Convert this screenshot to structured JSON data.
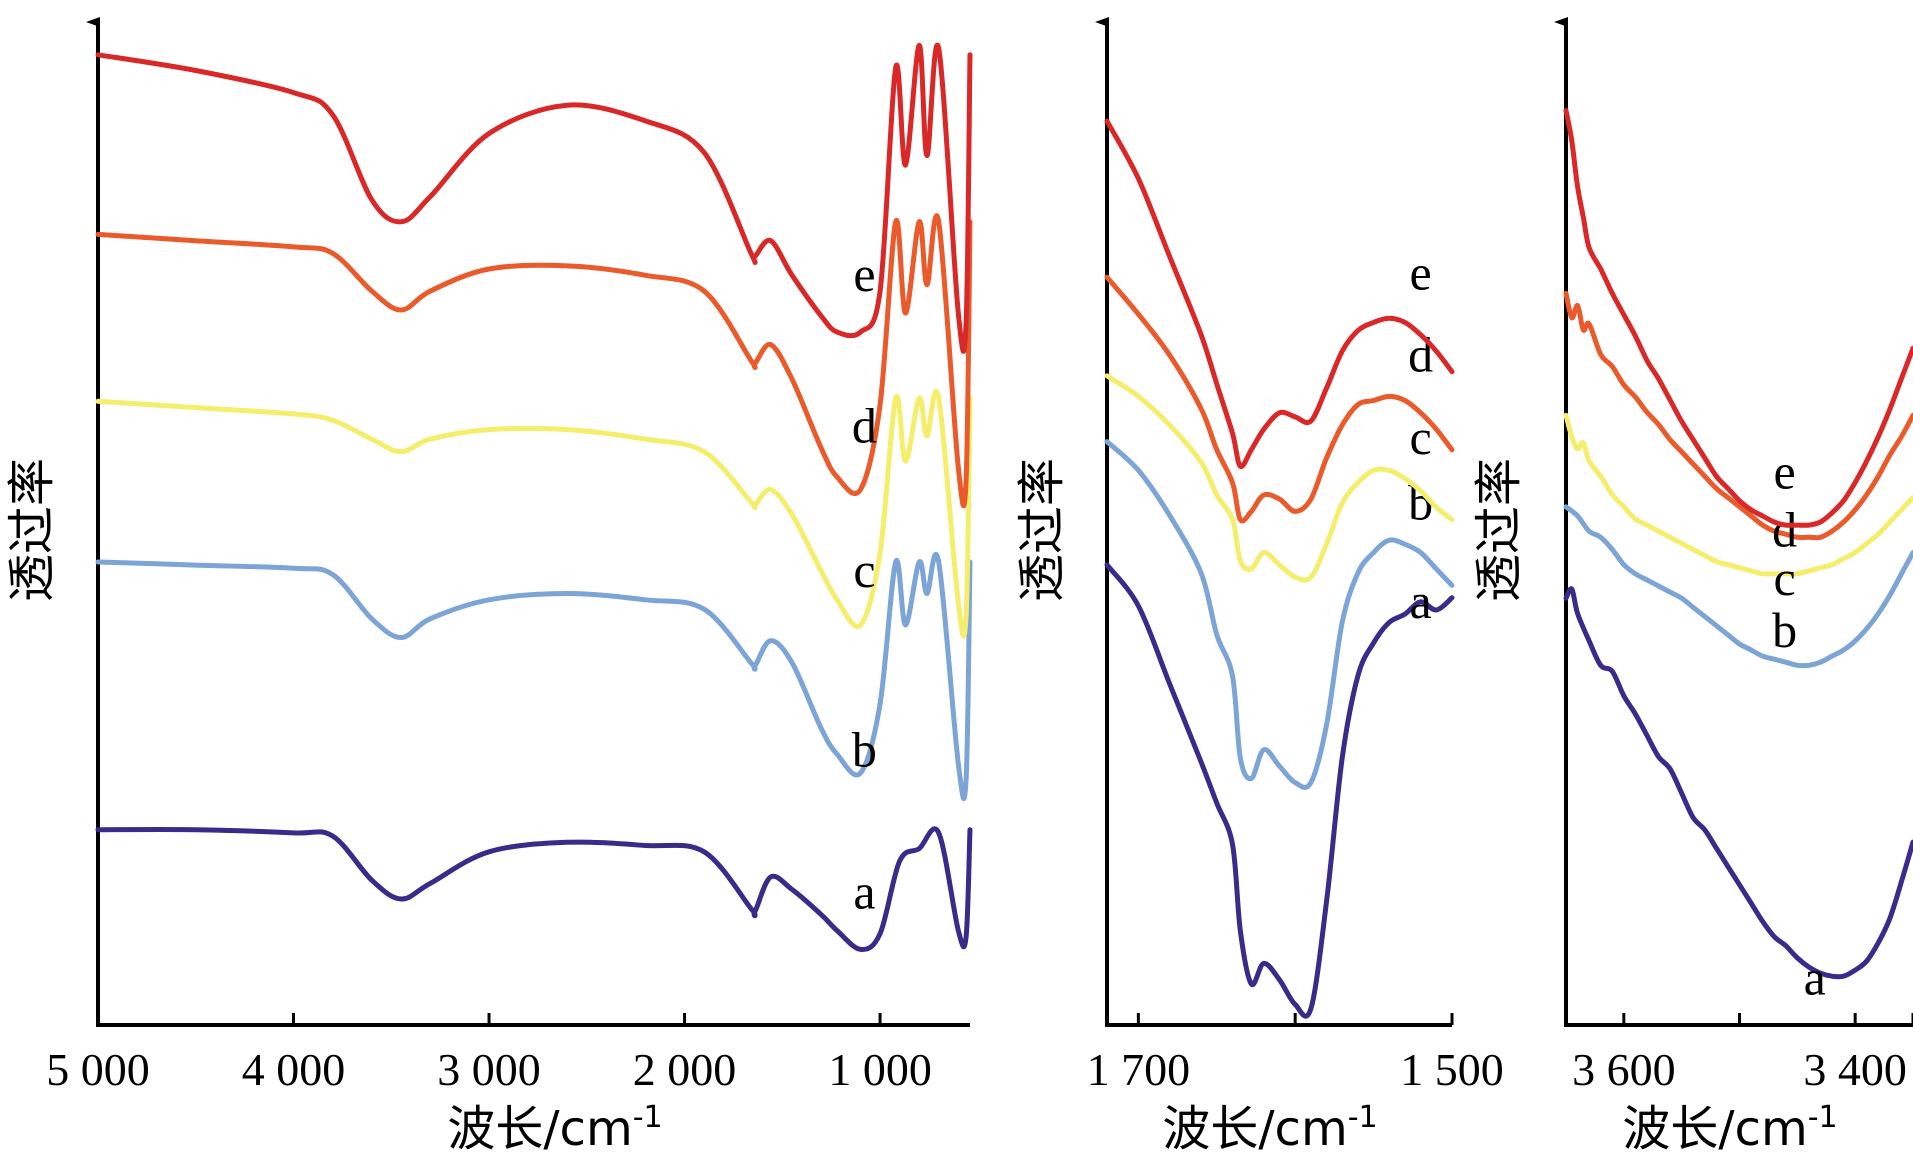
{
  "chart_data": [
    {
      "type": "line",
      "panel": "full",
      "xlabel": "波长/cm",
      "xlabel_sup": "-1",
      "ylabel": "透过率",
      "xlim": [
        5000,
        540
      ],
      "x_ticks": [
        5000,
        4000,
        3000,
        2000,
        1000
      ],
      "x_tick_labels": [
        "5 000",
        "4 000",
        "3 000",
        "2 000",
        "1 000"
      ],
      "series": [
        {
          "label": "a",
          "color": "#3b2a8a",
          "offset": 1.7,
          "label_x": 1080,
          "label_y": 2.0,
          "x": [
            5000,
            4500,
            4000,
            3800,
            3600,
            3450,
            3300,
            3000,
            2600,
            2200,
            1900,
            1660,
            1640,
            1560,
            1450,
            1300,
            1220,
            1100,
            1000,
            900,
            800,
            700,
            600,
            560,
            540
          ],
          "y": [
            4.5,
            4.5,
            4.4,
            4.3,
            2.9,
            2.3,
            2.8,
            3.8,
            4.1,
            4.0,
            3.8,
            2.0,
            1.9,
            3.0,
            2.6,
            1.8,
            1.3,
            0.7,
            1.2,
            3.5,
            3.9,
            4.4,
            1.3,
            1.1,
            4.5
          ]
        },
        {
          "label": "b",
          "color": "#7ca4d6",
          "offset": 6.7,
          "label_x": 1080,
          "label_y": 1.5,
          "x": [
            5000,
            4500,
            4000,
            3800,
            3600,
            3450,
            3300,
            3000,
            2600,
            2200,
            1900,
            1660,
            1640,
            1560,
            1450,
            1300,
            1220,
            1100,
            1000,
            920,
            870,
            800,
            760,
            700,
            600,
            560,
            540
          ],
          "y": [
            8.0,
            7.9,
            7.8,
            7.6,
            6.2,
            5.6,
            6.2,
            6.8,
            7.0,
            6.8,
            6.5,
            4.8,
            4.7,
            5.5,
            4.8,
            2.7,
            1.9,
            1.3,
            3.5,
            8.0,
            6.0,
            8.0,
            7.0,
            8.0,
            1.6,
            1.1,
            8.0
          ]
        },
        {
          "label": "c",
          "color": "#f4ee6c",
          "offset": 11.4,
          "label_x": 1080,
          "label_y": 2.5,
          "x": [
            5000,
            4500,
            4000,
            3800,
            3600,
            3450,
            3300,
            3000,
            2600,
            2200,
            1900,
            1660,
            1640,
            1560,
            1450,
            1300,
            1220,
            1100,
            1000,
            920,
            870,
            800,
            760,
            700,
            600,
            560,
            540
          ],
          "y": [
            8.4,
            8.2,
            8.0,
            7.8,
            7.2,
            6.8,
            7.2,
            7.5,
            7.5,
            7.2,
            6.8,
            5.2,
            5.1,
            5.6,
            4.8,
            3.0,
            2.1,
            1.3,
            3.6,
            8.5,
            6.5,
            8.5,
            7.3,
            8.5,
            2.0,
            1.6,
            8.5
          ]
        },
        {
          "label": "d",
          "color": "#ea5a2a",
          "offset": 16.5,
          "label_x": 1080,
          "label_y": 2.0,
          "x": [
            5000,
            4500,
            4000,
            3800,
            3600,
            3450,
            3300,
            3000,
            2600,
            2200,
            1900,
            1660,
            1640,
            1560,
            1450,
            1300,
            1220,
            1100,
            1000,
            920,
            870,
            800,
            760,
            700,
            600,
            560,
            540
          ],
          "y": [
            8.6,
            8.4,
            8.2,
            8.0,
            6.8,
            6.2,
            6.8,
            7.5,
            7.6,
            7.3,
            6.8,
            4.6,
            4.5,
            5.1,
            4.0,
            1.8,
            0.9,
            0.5,
            3.2,
            9.0,
            6.1,
            9.0,
            7.0,
            9.0,
            1.2,
            0.8,
            9.0
          ]
        },
        {
          "label": "e",
          "color": "#da2828",
          "offset": 21.8,
          "label_x": 1080,
          "label_y": 1.5,
          "x": [
            5000,
            4500,
            4000,
            3800,
            3600,
            3450,
            3300,
            3000,
            2600,
            2200,
            1900,
            1660,
            1640,
            1560,
            1450,
            1300,
            1220,
            1100,
            1000,
            920,
            870,
            800,
            760,
            700,
            600,
            560,
            540
          ],
          "y": [
            9.0,
            8.5,
            7.8,
            7.1,
            4.4,
            3.7,
            4.5,
            6.5,
            7.4,
            6.9,
            5.9,
            2.7,
            2.6,
            3.1,
            2.0,
            0.7,
            0.2,
            0.2,
            1.5,
            8.6,
            5.5,
            9.3,
            5.8,
            9.2,
            0.8,
            0.5,
            9.0
          ]
        }
      ]
    },
    {
      "type": "line",
      "panel": "1700-1500",
      "xlabel": "波长/cm",
      "xlabel_sup": "-1",
      "ylabel": "透过率",
      "xlim": [
        1720,
        1500
      ],
      "x_ticks": [
        1700,
        1500
      ],
      "x_tick_labels": [
        "1 700",
        "1 500"
      ],
      "minor_ticks": [
        1700,
        1600,
        1500
      ],
      "series": [
        {
          "label": "a",
          "color": "#3b2a8a",
          "offset": 0,
          "label_x": 1520,
          "label_y": 9.9,
          "x": [
            1720,
            1700,
            1680,
            1660,
            1650,
            1640,
            1635,
            1628,
            1620,
            1610,
            1600,
            1590,
            1580,
            1570,
            1560,
            1550,
            1540,
            1530,
            1520,
            1510,
            1500
          ],
          "y": [
            11.2,
            10.2,
            8.3,
            6.4,
            5.4,
            4.4,
            2.3,
            1.0,
            1.5,
            1.1,
            0.5,
            0.4,
            3.0,
            6.5,
            8.5,
            9.3,
            9.8,
            10.0,
            10.3,
            10.1,
            10.4
          ]
        },
        {
          "label": "b",
          "color": "#7ca4d6",
          "offset": 0,
          "label_x": 1520,
          "label_y": 12.3,
          "x": [
            1720,
            1700,
            1680,
            1660,
            1650,
            1640,
            1635,
            1628,
            1620,
            1610,
            1600,
            1590,
            1580,
            1570,
            1560,
            1550,
            1540,
            1530,
            1520,
            1510,
            1500
          ],
          "y": [
            14.2,
            13.5,
            12.4,
            11.0,
            9.5,
            8.5,
            6.5,
            6.0,
            6.7,
            6.3,
            5.9,
            5.9,
            7.3,
            9.8,
            11.0,
            11.5,
            11.8,
            11.7,
            11.5,
            11.1,
            10.7
          ]
        },
        {
          "label": "c",
          "color": "#f4ee6c",
          "offset": 0,
          "label_x": 1520,
          "label_y": 13.9,
          "x": [
            1720,
            1700,
            1680,
            1660,
            1650,
            1640,
            1635,
            1628,
            1620,
            1610,
            1600,
            1590,
            1580,
            1570,
            1560,
            1550,
            1540,
            1530,
            1520,
            1510,
            1500
          ],
          "y": [
            15.8,
            15.3,
            14.6,
            13.7,
            12.9,
            12.3,
            11.3,
            11.1,
            11.5,
            11.2,
            10.9,
            10.9,
            11.7,
            12.7,
            13.2,
            13.5,
            13.5,
            13.3,
            13.0,
            12.6,
            12.3
          ]
        },
        {
          "label": "d",
          "color": "#ea5a2a",
          "offset": 0,
          "label_x": 1520,
          "label_y": 15.9,
          "x": [
            1720,
            1700,
            1680,
            1660,
            1650,
            1640,
            1635,
            1628,
            1620,
            1610,
            1600,
            1590,
            1580,
            1570,
            1560,
            1550,
            1540,
            1530,
            1520,
            1510,
            1500
          ],
          "y": [
            18.2,
            17.3,
            16.3,
            15.0,
            14.0,
            13.2,
            12.3,
            12.5,
            12.9,
            12.8,
            12.5,
            12.8,
            13.8,
            14.6,
            15.1,
            15.2,
            15.3,
            15.2,
            14.9,
            14.5,
            14.0
          ]
        },
        {
          "label": "e",
          "color": "#da2828",
          "offset": 0,
          "label_x": 1520,
          "label_y": 17.9,
          "x": [
            1720,
            1700,
            1680,
            1660,
            1650,
            1640,
            1635,
            1628,
            1620,
            1610,
            1600,
            1590,
            1580,
            1570,
            1560,
            1550,
            1540,
            1530,
            1520,
            1510,
            1500
          ],
          "y": [
            22.0,
            20.6,
            18.7,
            16.8,
            15.6,
            14.4,
            13.6,
            14.0,
            14.5,
            14.9,
            14.8,
            14.7,
            15.5,
            16.4,
            16.9,
            17.1,
            17.2,
            17.1,
            16.8,
            16.4,
            15.9
          ]
        }
      ]
    },
    {
      "type": "line",
      "panel": "3600-3400",
      "xlabel": "波长/cm",
      "xlabel_sup": "-1",
      "ylabel": "透过率",
      "xlim": [
        3650,
        3350
      ],
      "x_ticks": [
        3600,
        3400
      ],
      "x_tick_labels": [
        "3 600",
        "3 400"
      ],
      "minor_ticks": [
        3600,
        3500,
        3400
      ],
      "series": [
        {
          "label": "a",
          "color": "#3b2a8a",
          "offset": 0,
          "label_x": 3435,
          "label_y": 1.0,
          "x": [
            3650,
            3645,
            3640,
            3630,
            3620,
            3610,
            3600,
            3590,
            3580,
            3570,
            3560,
            3550,
            3540,
            3530,
            3520,
            3510,
            3500,
            3490,
            3480,
            3470,
            3460,
            3450,
            3440,
            3430,
            3420,
            3410,
            3400,
            3390,
            3380,
            3370,
            3360,
            3350
          ],
          "y": [
            14.0,
            14.3,
            13.5,
            12.6,
            11.8,
            11.6,
            10.8,
            10.2,
            9.5,
            8.8,
            8.4,
            7.6,
            6.8,
            6.4,
            5.8,
            5.2,
            4.6,
            4.0,
            3.4,
            2.9,
            2.6,
            2.2,
            1.9,
            1.7,
            1.6,
            1.6,
            1.8,
            2.1,
            2.7,
            3.5,
            4.7,
            6.0
          ]
        },
        {
          "label": "b",
          "color": "#7ca4d6",
          "offset": 0,
          "label_x": 3461,
          "label_y": 12.4,
          "x": [
            3650,
            3640,
            3630,
            3620,
            3610,
            3600,
            3590,
            3580,
            3570,
            3560,
            3550,
            3540,
            3530,
            3520,
            3510,
            3500,
            3490,
            3480,
            3470,
            3460,
            3450,
            3440,
            3430,
            3420,
            3410,
            3400,
            3390,
            3380,
            3370,
            3360,
            3350
          ],
          "y": [
            17.0,
            16.7,
            16.2,
            16.0,
            15.6,
            15.1,
            14.8,
            14.6,
            14.4,
            14.2,
            14.0,
            13.7,
            13.4,
            13.1,
            12.8,
            12.5,
            12.3,
            12.1,
            12.0,
            11.9,
            11.8,
            11.8,
            11.9,
            12.1,
            12.3,
            12.6,
            13.0,
            13.5,
            14.1,
            14.8,
            15.5
          ]
        },
        {
          "label": "c",
          "color": "#f4ee6c",
          "offset": 0,
          "label_x": 3461,
          "label_y": 14.1,
          "x": [
            3650,
            3645,
            3640,
            3635,
            3630,
            3620,
            3610,
            3600,
            3590,
            3580,
            3570,
            3560,
            3550,
            3540,
            3530,
            3520,
            3510,
            3500,
            3490,
            3480,
            3470,
            3460,
            3450,
            3440,
            3430,
            3420,
            3410,
            3400,
            3390,
            3380,
            3370,
            3360,
            3350
          ],
          "y": [
            20.0,
            19.3,
            18.9,
            19.1,
            18.5,
            18.0,
            17.4,
            17.0,
            16.6,
            16.4,
            16.2,
            16.0,
            15.8,
            15.6,
            15.4,
            15.2,
            15.1,
            15.0,
            14.9,
            14.8,
            14.8,
            14.8,
            14.8,
            14.9,
            15.0,
            15.1,
            15.3,
            15.5,
            15.8,
            16.1,
            16.5,
            16.9,
            17.3
          ]
        },
        {
          "label": "d",
          "color": "#ea5a2a",
          "offset": 0,
          "label_x": 3461,
          "label_y": 15.7,
          "x": [
            3650,
            3645,
            3640,
            3635,
            3630,
            3620,
            3610,
            3600,
            3590,
            3580,
            3570,
            3560,
            3550,
            3540,
            3530,
            3520,
            3510,
            3500,
            3490,
            3480,
            3470,
            3460,
            3450,
            3440,
            3430,
            3420,
            3410,
            3400,
            3390,
            3380,
            3370,
            3360,
            3350
          ],
          "y": [
            24.0,
            23.2,
            23.6,
            22.8,
            23.0,
            22.0,
            21.6,
            21.0,
            20.6,
            20.1,
            19.7,
            19.2,
            18.8,
            18.4,
            18.0,
            17.6,
            17.3,
            17.0,
            16.7,
            16.4,
            16.2,
            16.1,
            16.0,
            16.0,
            16.0,
            16.2,
            16.5,
            16.9,
            17.4,
            18.0,
            18.7,
            19.3,
            20.0
          ]
        },
        {
          "label": "e",
          "color": "#da2828",
          "offset": 0,
          "label_x": 3461,
          "label_y": 17.6,
          "x": [
            3650,
            3645,
            3640,
            3635,
            3630,
            3620,
            3610,
            3600,
            3590,
            3580,
            3570,
            3560,
            3550,
            3540,
            3530,
            3520,
            3510,
            3500,
            3490,
            3480,
            3470,
            3460,
            3450,
            3440,
            3430,
            3420,
            3410,
            3400,
            3390,
            3380,
            3370,
            3360,
            3350
          ],
          "y": [
            30.0,
            29.0,
            27.5,
            26.5,
            25.5,
            24.8,
            24.0,
            23.3,
            22.6,
            21.8,
            21.2,
            20.5,
            19.8,
            19.2,
            18.6,
            18.0,
            17.6,
            17.2,
            16.9,
            16.7,
            16.5,
            16.4,
            16.4,
            16.4,
            16.5,
            16.8,
            17.2,
            17.8,
            18.5,
            19.3,
            20.2,
            21.2,
            22.2
          ]
        }
      ]
    }
  ]
}
